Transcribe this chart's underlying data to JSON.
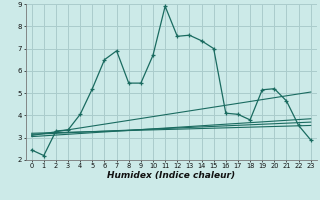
{
  "xlabel": "Humidex (Indice chaleur)",
  "bg_color": "#cceae8",
  "grid_color": "#aacccc",
  "line_color": "#1a6b60",
  "xlim": [
    -0.5,
    23.5
  ],
  "ylim": [
    2,
    9
  ],
  "xticks": [
    0,
    1,
    2,
    3,
    4,
    5,
    6,
    7,
    8,
    9,
    10,
    11,
    12,
    13,
    14,
    15,
    16,
    17,
    18,
    19,
    20,
    21,
    22,
    23
  ],
  "yticks": [
    2,
    3,
    4,
    5,
    6,
    7,
    8,
    9
  ],
  "main_series": {
    "x": [
      0,
      1,
      2,
      3,
      4,
      5,
      6,
      7,
      8,
      9,
      10,
      11,
      12,
      13,
      14,
      15,
      16,
      17,
      18,
      19,
      20,
      21,
      22,
      23
    ],
    "y": [
      2.45,
      2.2,
      3.3,
      3.35,
      4.05,
      5.2,
      6.5,
      6.9,
      5.45,
      5.45,
      6.7,
      8.9,
      7.55,
      7.6,
      7.35,
      7.0,
      4.1,
      4.05,
      3.8,
      5.15,
      5.2,
      4.65,
      3.55,
      2.9
    ]
  },
  "extra_series": [
    {
      "x": [
        0,
        23
      ],
      "y": [
        3.1,
        5.05
      ]
    },
    {
      "x": [
        0,
        23
      ],
      "y": [
        3.2,
        3.55
      ]
    },
    {
      "x": [
        0,
        23
      ],
      "y": [
        3.05,
        3.85
      ]
    },
    {
      "x": [
        0,
        23
      ],
      "y": [
        3.15,
        3.7
      ]
    }
  ]
}
